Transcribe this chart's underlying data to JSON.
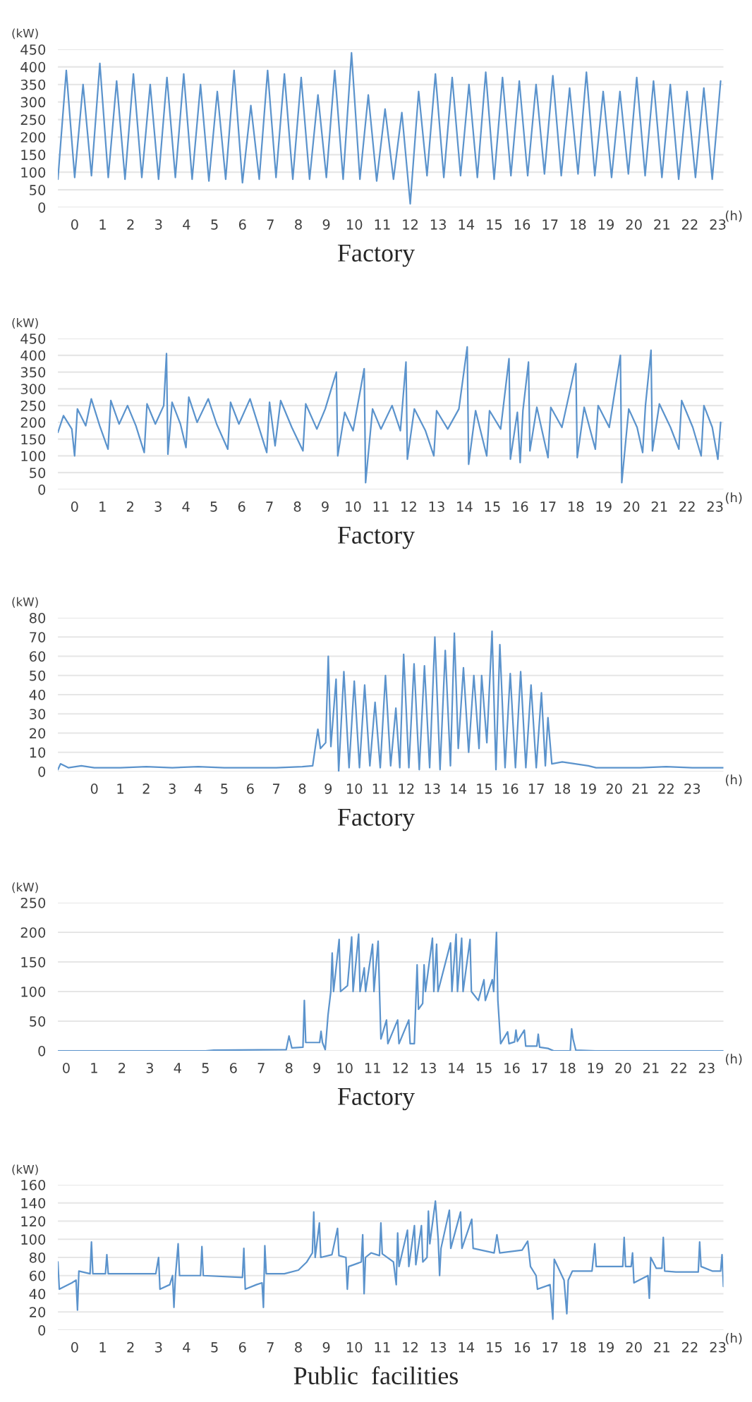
{
  "chart_data": [
    {
      "type": "line",
      "title": "Factory",
      "xlabel": "(h)",
      "ylabel": "(kW)",
      "color": "#5b93cc",
      "grid": "y",
      "xlim": [
        -0.6,
        23.2
      ],
      "ylim": [
        0,
        450
      ],
      "xticks": [
        0,
        1,
        2,
        3,
        4,
        5,
        6,
        7,
        8,
        9,
        10,
        11,
        12,
        13,
        14,
        15,
        16,
        17,
        18,
        19,
        20,
        21,
        22,
        23
      ],
      "yticks": [
        0,
        50,
        100,
        150,
        200,
        250,
        300,
        350,
        400,
        450
      ],
      "x": [
        -0.6,
        -0.3,
        0,
        0.3,
        0.6,
        0.9,
        1.2,
        1.5,
        1.8,
        2.1,
        2.4,
        2.7,
        3,
        3.3,
        3.6,
        3.9,
        4.2,
        4.5,
        4.8,
        5.1,
        5.4,
        5.7,
        6,
        6.3,
        6.6,
        6.9,
        7.2,
        7.5,
        7.8,
        8.1,
        8.4,
        8.7,
        9,
        9.3,
        9.6,
        9.9,
        10.2,
        10.5,
        10.8,
        11.1,
        11.4,
        11.7,
        12,
        12.3,
        12.6,
        12.9,
        13.2,
        13.5,
        13.8,
        14.1,
        14.4,
        14.7,
        15,
        15.3,
        15.6,
        15.9,
        16.2,
        16.5,
        16.8,
        17.1,
        17.4,
        17.7,
        18,
        18.3,
        18.6,
        18.9,
        19.2,
        19.5,
        19.8,
        20.1,
        20.4,
        20.7,
        21,
        21.3,
        21.6,
        21.9,
        22.2,
        22.5,
        22.8,
        23.1
      ],
      "values": [
        80,
        390,
        85,
        350,
        90,
        410,
        85,
        360,
        80,
        380,
        85,
        350,
        80,
        370,
        85,
        380,
        80,
        350,
        75,
        330,
        80,
        390,
        70,
        290,
        80,
        390,
        85,
        380,
        80,
        370,
        80,
        320,
        85,
        390,
        80,
        440,
        80,
        320,
        75,
        280,
        80,
        270,
        10,
        330,
        90,
        380,
        85,
        370,
        90,
        350,
        85,
        385,
        80,
        370,
        90,
        360,
        90,
        350,
        95,
        375,
        90,
        340,
        95,
        385,
        90,
        330,
        85,
        330,
        95,
        370,
        90,
        360,
        85,
        350,
        80,
        330,
        85,
        340,
        80,
        360
      ]
    },
    {
      "type": "line",
      "title": "Factory",
      "xlabel": "(h)",
      "ylabel": "(kW)",
      "color": "#5b93cc",
      "grid": "y",
      "xlim": [
        -0.6,
        23.3
      ],
      "ylim": [
        0,
        450
      ],
      "xticks": [
        0,
        1,
        2,
        3,
        4,
        5,
        6,
        7,
        8,
        9,
        10,
        11,
        12,
        13,
        14,
        15,
        16,
        17,
        18,
        19,
        20,
        21,
        22,
        23
      ],
      "yticks": [
        0,
        50,
        100,
        150,
        200,
        250,
        300,
        350,
        400,
        450
      ],
      "x": [
        -0.6,
        -0.4,
        -0.1,
        0,
        0.1,
        0.4,
        0.6,
        0.9,
        1.2,
        1.3,
        1.6,
        1.9,
        2.2,
        2.5,
        2.6,
        2.9,
        3.2,
        3.3,
        3.35,
        3.5,
        3.8,
        4,
        4.1,
        4.4,
        4.8,
        5.1,
        5.5,
        5.6,
        5.9,
        6.3,
        6.6,
        6.9,
        7.0,
        7.2,
        7.4,
        7.8,
        8.2,
        8.3,
        8.7,
        9.0,
        9.4,
        9.45,
        9.7,
        10.0,
        10.4,
        10.45,
        10.7,
        11.0,
        11.4,
        11.7,
        11.9,
        11.95,
        12.2,
        12.6,
        12.9,
        13.0,
        13.4,
        13.8,
        14.1,
        14.15,
        14.4,
        14.8,
        14.9,
        15.3,
        15.6,
        15.65,
        15.9,
        16.0,
        16.1,
        16.3,
        16.35,
        16.6,
        17.0,
        17.1,
        17.5,
        18.0,
        18.05,
        18.3,
        18.7,
        18.8,
        19.2,
        19.6,
        19.65,
        19.9,
        20.2,
        20.4,
        20.5,
        20.7,
        20.75,
        21.0,
        21.4,
        21.7,
        21.8,
        22.2,
        22.5,
        22.6,
        22.9,
        23.1,
        23.2
      ],
      "values": [
        170,
        220,
        180,
        100,
        240,
        190,
        270,
        190,
        120,
        265,
        195,
        250,
        190,
        110,
        255,
        195,
        250,
        405,
        105,
        260,
        195,
        125,
        275,
        200,
        270,
        195,
        120,
        260,
        195,
        270,
        190,
        110,
        260,
        130,
        265,
        185,
        115,
        255,
        180,
        240,
        350,
        100,
        230,
        175,
        360,
        20,
        240,
        180,
        250,
        175,
        380,
        90,
        240,
        175,
        100,
        235,
        180,
        240,
        425,
        75,
        235,
        100,
        235,
        180,
        390,
        90,
        230,
        80,
        235,
        380,
        115,
        245,
        95,
        245,
        185,
        375,
        95,
        245,
        120,
        250,
        185,
        400,
        20,
        240,
        185,
        110,
        250,
        415,
        115,
        255,
        185,
        120,
        265,
        185,
        100,
        250,
        185,
        90,
        200
      ]
    },
    {
      "type": "line",
      "title": "Factory",
      "xlabel": "(h)",
      "ylabel": "(kW)",
      "color": "#5b93cc",
      "grid": "y",
      "xlim": [
        -1.4,
        24.2
      ],
      "ylim": [
        0,
        80
      ],
      "xticks": [
        0,
        1,
        2,
        3,
        4,
        5,
        6,
        7,
        8,
        9,
        10,
        11,
        12,
        13,
        14,
        15,
        16,
        17,
        18,
        19,
        20,
        21,
        22,
        23
      ],
      "yticks": [
        0,
        10,
        20,
        30,
        40,
        50,
        60,
        70,
        80
      ],
      "x": [
        -1.4,
        -1.3,
        -1,
        -0.5,
        0,
        1,
        2,
        3,
        4,
        5,
        6,
        7,
        8,
        8.4,
        8.6,
        8.7,
        8.9,
        9.0,
        9.1,
        9.3,
        9.4,
        9.6,
        9.8,
        10.0,
        10.2,
        10.4,
        10.6,
        10.8,
        11.0,
        11.2,
        11.4,
        11.6,
        11.75,
        11.9,
        12.1,
        12.3,
        12.5,
        12.7,
        12.9,
        13.1,
        13.3,
        13.5,
        13.7,
        13.85,
        14.0,
        14.2,
        14.4,
        14.6,
        14.8,
        14.9,
        15.1,
        15.3,
        15.45,
        15.6,
        15.8,
        16.0,
        16.2,
        16.4,
        16.6,
        16.8,
        17.0,
        17.2,
        17.35,
        17.45,
        17.6,
        18,
        19,
        19.3,
        20,
        21,
        22,
        23,
        24.2
      ],
      "values": [
        1,
        4,
        2,
        3,
        2,
        2,
        2.5,
        2,
        2.5,
        2,
        2,
        2,
        2.5,
        3,
        22,
        12,
        15,
        60,
        13,
        48,
        0,
        52,
        2,
        47,
        2,
        45,
        3,
        36,
        2,
        50,
        3,
        33,
        2,
        61,
        2,
        56,
        1,
        55,
        2,
        70,
        1,
        63,
        3,
        72,
        12,
        54,
        10,
        50,
        12,
        50,
        15,
        73,
        1,
        66,
        2,
        51,
        2,
        52,
        2,
        45,
        2,
        41,
        3,
        28,
        4,
        5,
        3,
        2,
        2,
        2,
        2.5,
        2,
        2
      ]
    },
    {
      "type": "line",
      "title": "Factory",
      "xlabel": "(h)",
      "ylabel": "(kW)",
      "color": "#5b93cc",
      "grid": "y",
      "xlim": [
        -0.3,
        23.6
      ],
      "ylim": [
        0,
        250
      ],
      "xticks": [
        0,
        1,
        2,
        3,
        4,
        5,
        6,
        7,
        8,
        9,
        10,
        11,
        12,
        13,
        14,
        15,
        16,
        17,
        18,
        19,
        20,
        21,
        22,
        23
      ],
      "yticks": [
        0,
        50,
        100,
        150,
        200,
        250
      ],
      "x": [
        -0.3,
        5,
        5.3,
        7.9,
        8.0,
        8.1,
        8.5,
        8.55,
        8.6,
        9.1,
        9.15,
        9.2,
        9.3,
        9.35,
        9.4,
        9.5,
        9.55,
        9.6,
        9.8,
        9.85,
        10.1,
        10.25,
        10.3,
        10.5,
        10.55,
        10.7,
        10.75,
        11.0,
        11.05,
        11.2,
        11.25,
        11.3,
        11.5,
        11.55,
        11.9,
        11.95,
        12.3,
        12.35,
        12.5,
        12.6,
        12.65,
        12.8,
        12.85,
        12.9,
        13.15,
        13.2,
        13.3,
        13.35,
        13.8,
        13.85,
        14.0,
        14.05,
        14.2,
        14.25,
        14.5,
        14.55,
        14.8,
        15.0,
        15.05,
        15.3,
        15.35,
        15.45,
        15.5,
        15.6,
        15.85,
        15.9,
        16.1,
        16.15,
        16.2,
        16.45,
        16.5,
        16.9,
        16.95,
        17.0,
        17.3,
        17.5,
        18.1,
        18.15,
        18.2,
        18.3,
        19,
        23.6
      ],
      "values": [
        0,
        0,
        1,
        2,
        25,
        5,
        6,
        85,
        14,
        14,
        33,
        14,
        2,
        30,
        60,
        100,
        165,
        100,
        188,
        100,
        110,
        192,
        100,
        197,
        100,
        140,
        100,
        180,
        100,
        185,
        100,
        20,
        52,
        12,
        52,
        12,
        52,
        12,
        12,
        145,
        70,
        80,
        145,
        100,
        190,
        100,
        180,
        100,
        182,
        100,
        197,
        100,
        190,
        100,
        188,
        100,
        85,
        120,
        85,
        120,
        100,
        200,
        85,
        12,
        32,
        12,
        15,
        35,
        16,
        35,
        8,
        8,
        28,
        6,
        4,
        0,
        0,
        37,
        20,
        1,
        0,
        0
      ]
    },
    {
      "type": "line",
      "title": "Public  facilities",
      "xlabel": "(h)",
      "ylabel": "(kW)",
      "color": "#5b93cc",
      "grid": "y",
      "xlim": [
        -0.6,
        23.2
      ],
      "ylim": [
        0,
        160
      ],
      "xticks": [
        0,
        1,
        2,
        3,
        4,
        5,
        6,
        7,
        8,
        9,
        10,
        11,
        12,
        13,
        14,
        15,
        16,
        17,
        18,
        19,
        20,
        21,
        22,
        23
      ],
      "yticks": [
        0,
        20,
        40,
        60,
        80,
        100,
        120,
        140,
        160
      ],
      "x": [
        -0.6,
        -0.55,
        -0.1,
        0.05,
        0.1,
        0.15,
        0.55,
        0.6,
        0.65,
        1.1,
        1.15,
        1.2,
        2.9,
        3.0,
        3.05,
        3.4,
        3.5,
        3.55,
        3.6,
        3.7,
        3.75,
        4.5,
        4.55,
        4.6,
        6.0,
        6.05,
        6.1,
        6.5,
        6.7,
        6.75,
        6.8,
        6.85,
        7.5,
        8.0,
        8.3,
        8.5,
        8.55,
        8.6,
        8.75,
        8.8,
        9.2,
        9.4,
        9.45,
        9.7,
        9.75,
        9.8,
        10.25,
        10.3,
        10.35,
        10.4,
        10.6,
        10.9,
        10.95,
        11.0,
        11.4,
        11.5,
        11.55,
        11.6,
        11.9,
        11.95,
        12.15,
        12.2,
        12.4,
        12.45,
        12.6,
        12.65,
        12.7,
        12.9,
        13.0,
        13.05,
        13.1,
        13.4,
        13.45,
        13.8,
        13.85,
        14.2,
        14.25,
        15.0,
        15.1,
        15.2,
        16.0,
        16.2,
        16.3,
        16.5,
        16.55,
        17.0,
        17.1,
        17.15,
        17.5,
        17.6,
        17.65,
        17.8,
        18.5,
        18.6,
        18.65,
        19.6,
        19.65,
        19.7,
        19.9,
        19.95,
        20.0,
        20.5,
        20.55,
        20.6,
        20.8,
        21.0,
        21.05,
        21.1,
        21.5,
        22.3,
        22.35,
        22.4,
        22.8,
        23.1,
        23.15,
        23.2
      ],
      "values": [
        75,
        45,
        52,
        55,
        22,
        65,
        62,
        97,
        62,
        62,
        83,
        62,
        62,
        80,
        45,
        50,
        60,
        25,
        58,
        95,
        60,
        60,
        92,
        60,
        58,
        90,
        45,
        50,
        52,
        25,
        93,
        62,
        62,
        66,
        75,
        85,
        130,
        80,
        118,
        80,
        83,
        112,
        82,
        80,
        45,
        70,
        75,
        105,
        40,
        80,
        85,
        82,
        118,
        84,
        75,
        50,
        107,
        70,
        110,
        70,
        115,
        72,
        115,
        75,
        80,
        131,
        95,
        142,
        100,
        60,
        90,
        132,
        90,
        130,
        90,
        122,
        90,
        85,
        105,
        85,
        88,
        98,
        70,
        60,
        45,
        50,
        12,
        78,
        55,
        18,
        55,
        65,
        65,
        95,
        70,
        70,
        102,
        70,
        70,
        85,
        52,
        60,
        35,
        80,
        68,
        68,
        102,
        65,
        64,
        64,
        97,
        70,
        65,
        65,
        83,
        48
      ]
    }
  ]
}
